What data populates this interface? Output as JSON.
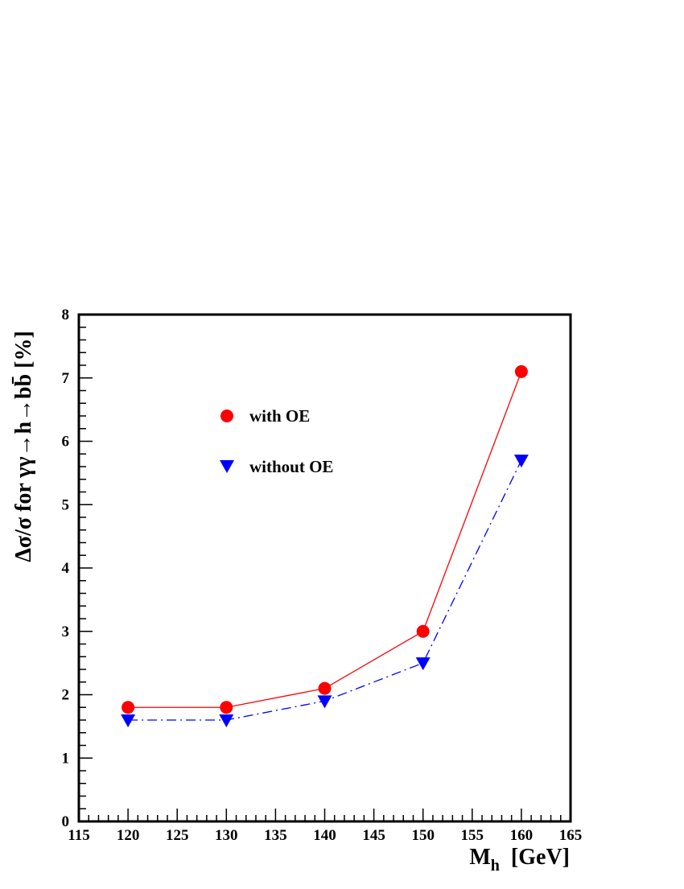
{
  "chart_data": {
    "type": "line",
    "title": "",
    "xlabel": "M",
    "xlabel_sub": "h",
    "xlabel_unit": "[GeV]",
    "ylabel": "Δσ/σ  for  γγ→h→bb̄ [%]",
    "xlim": [
      115,
      165
    ],
    "ylim": [
      0,
      8
    ],
    "x_ticks": [
      115,
      120,
      125,
      130,
      135,
      140,
      145,
      150,
      155,
      160,
      165
    ],
    "y_ticks": [
      0,
      1,
      2,
      3,
      4,
      5,
      6,
      7,
      8
    ],
    "grid": false,
    "legend_position": "upper-left",
    "x": [
      120,
      130,
      140,
      150,
      160
    ],
    "series": [
      {
        "name": "with OE",
        "values": [
          1.8,
          1.8,
          2.1,
          3.0,
          7.1
        ],
        "color": "#ff0000",
        "marker": "circle",
        "line_style": "solid"
      },
      {
        "name": "without OE",
        "values": [
          1.6,
          1.6,
          1.9,
          2.5,
          5.7
        ],
        "color": "#0000ff",
        "marker": "triangle-down",
        "line_style": "dash-dot"
      }
    ]
  }
}
